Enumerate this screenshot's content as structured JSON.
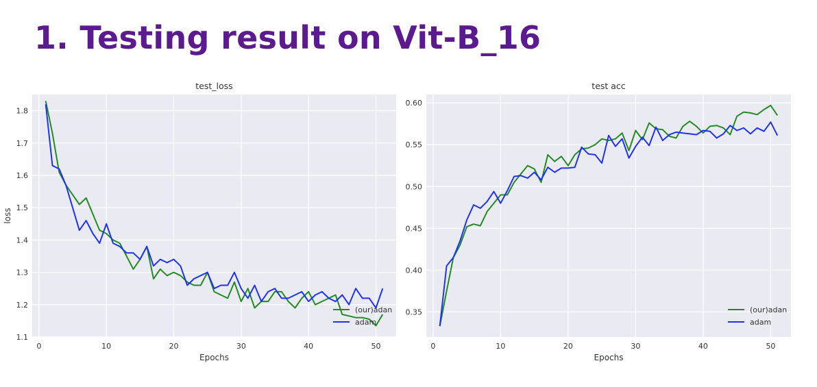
{
  "slide": {
    "title": "1.  Testing result on Vit-B_16"
  },
  "colors": {
    "title": "#5b1a8e",
    "adan": "#228b22",
    "adam": "#1f32f2",
    "plot_bg": "#eaeaf2",
    "grid": "#ffffff"
  },
  "chart_data": [
    {
      "type": "line",
      "title": "test_loss",
      "xlabel": "Epochs",
      "ylabel": "loss",
      "xlim": [
        -1,
        53
      ],
      "ylim": [
        1.1,
        1.85
      ],
      "xticks": [
        0,
        10,
        20,
        30,
        40,
        50
      ],
      "xtick_labels": [
        "0",
        "10",
        "20",
        "30",
        "40",
        "50"
      ],
      "yticks": [
        1.1,
        1.2,
        1.3,
        1.4,
        1.5,
        1.6,
        1.7,
        1.8
      ],
      "ytick_labels": [
        "1.1",
        "1.2",
        "1.3",
        "1.4",
        "1.5",
        "1.6",
        "1.7",
        "1.8"
      ],
      "grid": true,
      "legend": "bottom-right",
      "x": [
        1,
        2,
        3,
        4,
        5,
        6,
        7,
        8,
        9,
        10,
        11,
        12,
        13,
        14,
        15,
        16,
        17,
        18,
        19,
        20,
        21,
        22,
        23,
        24,
        25,
        26,
        27,
        28,
        29,
        30,
        31,
        32,
        33,
        34,
        35,
        36,
        37,
        38,
        39,
        40,
        41,
        42,
        43,
        44,
        45,
        46,
        47,
        48,
        49,
        50,
        51
      ],
      "series": [
        {
          "name": "(our)adan",
          "color": "#228b22",
          "values": [
            1.83,
            1.73,
            1.61,
            1.57,
            1.54,
            1.51,
            1.53,
            1.48,
            1.43,
            1.42,
            1.4,
            1.39,
            1.35,
            1.31,
            1.34,
            1.38,
            1.28,
            1.31,
            1.29,
            1.3,
            1.29,
            1.27,
            1.26,
            1.26,
            1.3,
            1.24,
            1.23,
            1.22,
            1.27,
            1.21,
            1.25,
            1.19,
            1.21,
            1.21,
            1.24,
            1.24,
            1.21,
            1.19,
            1.22,
            1.24,
            1.2,
            1.21,
            1.22,
            1.23,
            1.17,
            1.165,
            1.16,
            1.16,
            1.155,
            1.135,
            1.17
          ]
        },
        {
          "name": "adam",
          "color": "#1f32f2",
          "values": [
            1.82,
            1.63,
            1.62,
            1.57,
            1.5,
            1.43,
            1.46,
            1.42,
            1.39,
            1.45,
            1.39,
            1.38,
            1.36,
            1.36,
            1.34,
            1.38,
            1.32,
            1.34,
            1.33,
            1.34,
            1.32,
            1.26,
            1.28,
            1.29,
            1.3,
            1.25,
            1.26,
            1.26,
            1.3,
            1.25,
            1.22,
            1.26,
            1.21,
            1.24,
            1.25,
            1.22,
            1.22,
            1.23,
            1.24,
            1.21,
            1.23,
            1.24,
            1.22,
            1.21,
            1.23,
            1.2,
            1.25,
            1.22,
            1.22,
            1.19,
            1.25
          ]
        }
      ]
    },
    {
      "type": "line",
      "title": "test acc",
      "xlabel": "Epochs",
      "ylabel": "",
      "xlim": [
        -1,
        53
      ],
      "ylim": [
        0.32,
        0.61
      ],
      "xticks": [
        0,
        10,
        20,
        30,
        40,
        50
      ],
      "xtick_labels": [
        "0",
        "10",
        "20",
        "30",
        "40",
        "50"
      ],
      "yticks": [
        0.35,
        0.4,
        0.45,
        0.5,
        0.55,
        0.6
      ],
      "ytick_labels": [
        "0.35",
        "0.40",
        "0.45",
        "0.50",
        "0.55",
        "0.60"
      ],
      "grid": true,
      "legend": "bottom-right",
      "x": [
        1,
        2,
        3,
        4,
        5,
        6,
        7,
        8,
        9,
        10,
        11,
        12,
        13,
        14,
        15,
        16,
        17,
        18,
        19,
        20,
        21,
        22,
        23,
        24,
        25,
        26,
        27,
        28,
        29,
        30,
        31,
        32,
        33,
        34,
        35,
        36,
        37,
        38,
        39,
        40,
        41,
        42,
        43,
        44,
        45,
        46,
        47,
        48,
        49,
        50,
        51
      ],
      "series": [
        {
          "name": "(our)adan",
          "color": "#228b22",
          "values": [
            0.333,
            0.375,
            0.415,
            0.43,
            0.452,
            0.455,
            0.453,
            0.47,
            0.48,
            0.49,
            0.49,
            0.505,
            0.515,
            0.525,
            0.521,
            0.505,
            0.538,
            0.53,
            0.536,
            0.525,
            0.538,
            0.545,
            0.546,
            0.55,
            0.557,
            0.555,
            0.557,
            0.564,
            0.543,
            0.567,
            0.556,
            0.576,
            0.569,
            0.568,
            0.56,
            0.558,
            0.572,
            0.578,
            0.572,
            0.564,
            0.572,
            0.573,
            0.57,
            0.562,
            0.584,
            0.589,
            0.588,
            0.586,
            0.592,
            0.597,
            0.585
          ]
        },
        {
          "name": "adam",
          "color": "#1f32f2",
          "values": [
            0.333,
            0.405,
            0.415,
            0.435,
            0.46,
            0.478,
            0.474,
            0.482,
            0.494,
            0.48,
            0.495,
            0.512,
            0.513,
            0.51,
            0.517,
            0.508,
            0.523,
            0.517,
            0.522,
            0.522,
            0.523,
            0.547,
            0.539,
            0.538,
            0.528,
            0.561,
            0.548,
            0.557,
            0.534,
            0.548,
            0.559,
            0.549,
            0.571,
            0.555,
            0.562,
            0.565,
            0.564,
            0.563,
            0.562,
            0.567,
            0.566,
            0.558,
            0.563,
            0.573,
            0.567,
            0.57,
            0.563,
            0.57,
            0.566,
            0.577,
            0.561
          ]
        }
      ]
    }
  ]
}
